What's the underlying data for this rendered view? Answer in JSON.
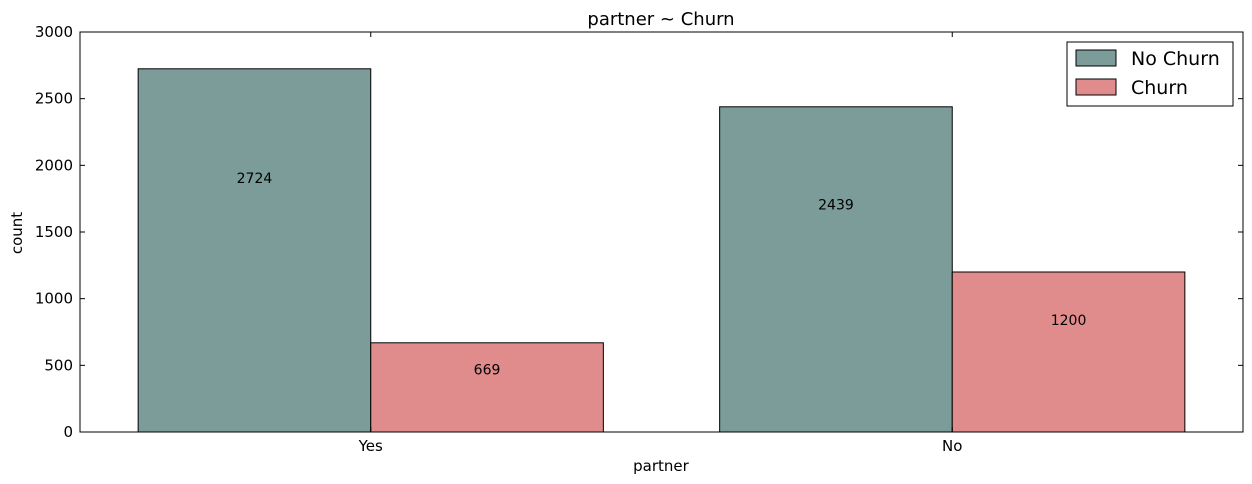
{
  "chart_data": {
    "type": "bar",
    "title": "partner ~ Churn",
    "xlabel": "partner",
    "ylabel": "count",
    "categories": [
      "Yes",
      "No"
    ],
    "ylim": [
      0,
      3000
    ],
    "yticks": [
      "0",
      "500",
      "1000",
      "1500",
      "2000",
      "2500",
      "3000"
    ],
    "legend_position": "top-right",
    "grid": false,
    "series": [
      {
        "name": "No Churn",
        "values": [
          2724,
          2439
        ],
        "labels": [
          "2724",
          "2439"
        ],
        "color": "#7b9c98"
      },
      {
        "name": "Churn",
        "values": [
          669,
          1200
        ],
        "labels": [
          "669",
          "1200"
        ],
        "color": "#e08c8c"
      }
    ]
  }
}
